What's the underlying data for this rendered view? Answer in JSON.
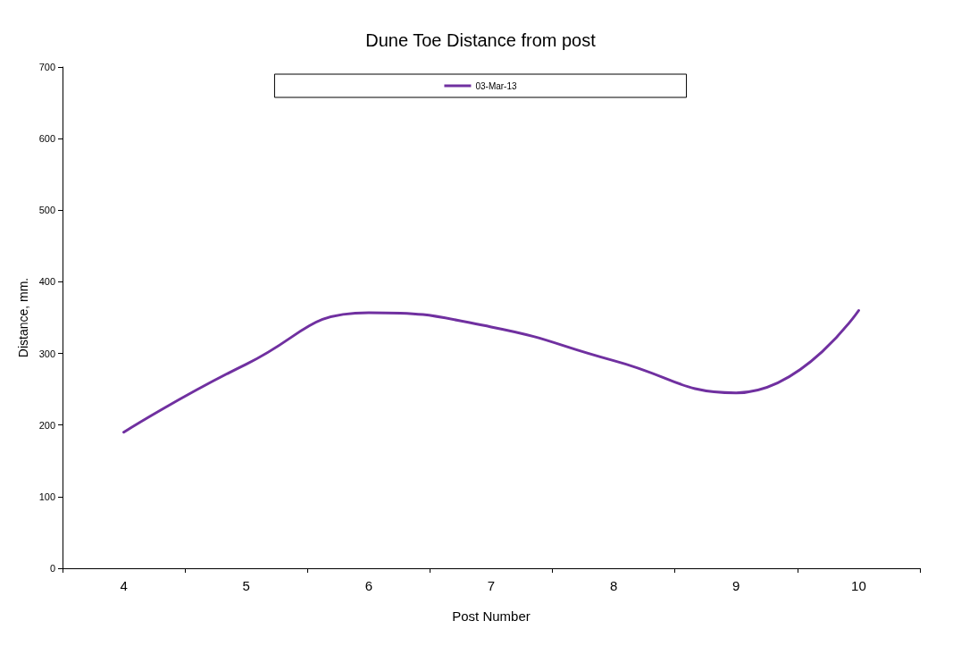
{
  "chart_data": {
    "type": "line",
    "title": "Dune Toe Distance from post",
    "xlabel": "Post Number",
    "ylabel": "Distance, mm.",
    "categories": [
      "4",
      "5",
      "6",
      "7",
      "8",
      "9",
      "10"
    ],
    "series": [
      {
        "name": "03-Mar-13",
        "color": "#7030a0",
        "values": [
          190,
          285,
          357,
          337,
          290,
          245,
          360
        ]
      }
    ],
    "ylim": [
      0,
      700
    ],
    "yticks": [
      0,
      100,
      200,
      300,
      400,
      500,
      600,
      700
    ],
    "grid": false,
    "legend": "top",
    "marker": "none",
    "line_style": "solid"
  }
}
